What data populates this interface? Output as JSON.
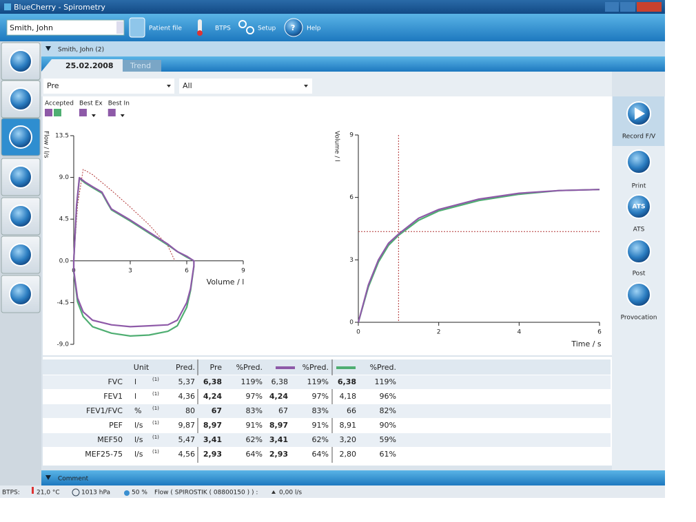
{
  "window": {
    "title": "BlueCherry - Spirometry"
  },
  "toolbar": {
    "patient": "Smith, John",
    "items": [
      "Patient file",
      "BTPS",
      "Setup",
      "Help"
    ]
  },
  "patient_header": "Smith, John (2)",
  "tabs": [
    "25.02.2008",
    "Trend"
  ],
  "filters": [
    "Pre",
    "All"
  ],
  "legend": [
    {
      "label": "Accepted",
      "colors": [
        "#8e5aa8",
        "#4fae72"
      ]
    },
    {
      "label": "Best Ex",
      "colors": [
        "#8e5aa8"
      ]
    },
    {
      "label": "Best In",
      "colors": [
        "#8e5aa8"
      ]
    }
  ],
  "chart_data": [
    {
      "type": "line",
      "y_label": "Flow / l/s",
      "x_label": "Volume / l",
      "xlim": [
        0,
        9
      ],
      "xticks": [
        0,
        3,
        6,
        9
      ],
      "ylim": [
        -9,
        13.5
      ],
      "yticks": [
        13.5,
        {
          "value": 9,
          "label": "9.0"
        },
        {
          "value": 4.5,
          "label": "4.5"
        },
        {
          "value": 0,
          "label": "0.0"
        },
        {
          "value": -4.5,
          "label": "-4.5"
        },
        {
          "value": -9,
          "label": "-9.0"
        }
      ],
      "series": [
        {
          "color": "#b03030",
          "dash": true,
          "x": [
            0,
            0.2,
            0.5,
            1,
            2,
            3,
            4,
            5,
            5.37
          ],
          "values": [
            0,
            6,
            9.87,
            9.3,
            7.6,
            5.8,
            3.9,
            1.6,
            0
          ]
        },
        {
          "color": "#4fae72",
          "x": [
            0,
            0.15,
            0.3,
            0.6,
            1,
            1.5,
            1.8,
            2,
            3,
            4,
            5,
            5.5,
            6,
            6.38,
            6.38,
            6.2,
            6,
            5.5,
            5,
            4,
            3,
            2,
            1,
            0.5,
            0.2,
            0,
            0
          ],
          "values": [
            0,
            5.8,
            8.9,
            8.4,
            7.9,
            7.3,
            6.2,
            5.5,
            4.3,
            3.0,
            1.7,
            1.0,
            0.4,
            0,
            -0.6,
            -3.2,
            -5,
            -7,
            -7.6,
            -8,
            -8.1,
            -7.8,
            -7.1,
            -6,
            -4.4,
            -1.2,
            0
          ]
        },
        {
          "color": "#8e5aa8",
          "x": [
            0,
            0.15,
            0.3,
            0.6,
            1,
            1.5,
            1.8,
            2,
            3,
            4,
            5,
            5.5,
            6,
            6.38,
            6.38,
            6.2,
            6,
            5.5,
            5,
            4,
            3,
            2,
            1,
            0.5,
            0.2,
            0,
            0
          ],
          "values": [
            0,
            6,
            8.97,
            8.5,
            8,
            7.4,
            6.3,
            5.6,
            4.4,
            3.1,
            1.8,
            1.0,
            0.5,
            0,
            -0.5,
            -3,
            -4.5,
            -6.4,
            -6.9,
            -7,
            -7.1,
            -6.9,
            -6.4,
            -5.5,
            -4,
            -1,
            0
          ]
        }
      ]
    },
    {
      "type": "line",
      "y_label": "Volume / l",
      "x_label": "Time / s",
      "xlim": [
        0,
        6
      ],
      "xticks": [
        0,
        2,
        4,
        6
      ],
      "ylim": [
        0,
        9
      ],
      "yticks": [
        0,
        3,
        6,
        9
      ],
      "reference": {
        "x": 1,
        "y": 4.36,
        "color": "#b03030"
      },
      "series": [
        {
          "color": "#4fae72",
          "x": [
            0,
            0.25,
            0.5,
            0.75,
            1,
            1.5,
            2,
            3,
            4,
            5,
            6
          ],
          "values": [
            0,
            1.7,
            2.9,
            3.7,
            4.18,
            4.9,
            5.35,
            5.85,
            6.15,
            6.33,
            6.38
          ]
        },
        {
          "color": "#8e5aa8",
          "x": [
            0,
            0.25,
            0.5,
            0.75,
            1,
            1.5,
            2,
            3,
            4,
            5,
            6
          ],
          "values": [
            0,
            1.8,
            3.0,
            3.8,
            4.24,
            5.0,
            5.42,
            5.92,
            6.2,
            6.33,
            6.38
          ]
        }
      ]
    }
  ],
  "table": {
    "header": [
      "Unit",
      "Pred.",
      "Pre",
      "%Pred.",
      "%Pred.",
      "%Pred."
    ],
    "swatches": [
      "#8e5aa8",
      "#4fae72"
    ],
    "rows": [
      [
        "FVC",
        "l",
        "(1)",
        "5,37",
        "6,38",
        "119%",
        "6,38",
        "119%",
        "6,38",
        "119%"
      ],
      [
        "FEV1",
        "l",
        "(1)",
        "4,36",
        "4,24",
        "97%",
        "4,24",
        "97%",
        "4,18",
        "96%"
      ],
      [
        "FEV1/FVC",
        "%",
        "(1)",
        "80",
        "67",
        "83%",
        "67",
        "83%",
        "66",
        "82%"
      ],
      [
        "PEF",
        "l/s",
        "(1)",
        "9,87",
        "8,97",
        "91%",
        "8,97",
        "91%",
        "8,91",
        "90%"
      ],
      [
        "MEF50",
        "l/s",
        "(1)",
        "5,47",
        "3,41",
        "62%",
        "3,41",
        "62%",
        "3,20",
        "59%"
      ],
      [
        "MEF25-75",
        "l/s",
        "(1)",
        "4,56",
        "2,93",
        "64%",
        "2,93",
        "64%",
        "2,80",
        "61%"
      ]
    ],
    "bold_cells": [
      [
        0,
        4
      ],
      [
        1,
        4
      ],
      [
        2,
        4
      ],
      [
        3,
        4
      ],
      [
        4,
        4
      ],
      [
        5,
        4
      ],
      [
        1,
        6
      ],
      [
        3,
        6
      ],
      [
        4,
        6
      ],
      [
        5,
        6
      ],
      [
        0,
        8
      ]
    ]
  },
  "side_actions": [
    "Record F/V",
    "Print",
    "ATS",
    "Post",
    "Provocation"
  ],
  "comment": "Comment",
  "status": {
    "label": "BTPS:",
    "temperature": "21,0 °C",
    "pressure": "1013 hPa",
    "humidity": "50 %",
    "flow_sensor": "Flow ( SPIROSTIK ( 08800150 ) ) :",
    "flow": "0,00 l/s"
  }
}
